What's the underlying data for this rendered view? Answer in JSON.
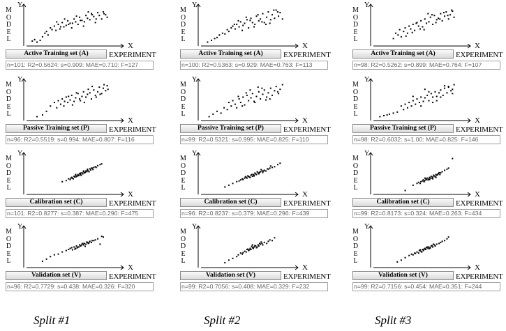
{
  "labels": {
    "y_axis": "Y",
    "x_axis": "X",
    "experiment": "EXPERIMENT",
    "model": "MODEL"
  },
  "splits": [
    "Split #1",
    "Split #2",
    "Split #3"
  ],
  "set_names": [
    "Active Training set (A)",
    "Passive Training set (P)",
    "Calibration set (C)",
    "Validation set (V)"
  ],
  "chart_data": [
    {
      "type": "scatter",
      "split": "Split #1",
      "set": "Active Training set (A)",
      "stats": "n=101: R2=0.5624: s=0.909: MAE=0.710: F=127",
      "xlabel": "X",
      "ylabel": "Y",
      "x": [
        0.02,
        0.05,
        0.08,
        0.12,
        0.15,
        0.18,
        0.2,
        0.22,
        0.25,
        0.27,
        0.3,
        0.32,
        0.35,
        0.37,
        0.4,
        0.42,
        0.45,
        0.47,
        0.5,
        0.52,
        0.55,
        0.57,
        0.6,
        0.62,
        0.65,
        0.67,
        0.7,
        0.72,
        0.75,
        0.77,
        0.8,
        0.82,
        0.85,
        0.87,
        0.9,
        0.92,
        0.95,
        0.97,
        0.33,
        0.43,
        0.53,
        0.63,
        0.73,
        0.83,
        0.93,
        0.38,
        0.48,
        0.58,
        0.68,
        0.78
      ],
      "y": [
        0.08,
        0.12,
        0.05,
        0.1,
        0.2,
        0.3,
        0.35,
        0.25,
        0.45,
        0.4,
        0.5,
        0.38,
        0.55,
        0.42,
        0.6,
        0.48,
        0.52,
        0.65,
        0.58,
        0.45,
        0.7,
        0.62,
        0.55,
        0.75,
        0.66,
        0.5,
        0.8,
        0.72,
        0.68,
        0.85,
        0.77,
        0.6,
        0.88,
        0.8,
        0.7,
        0.9,
        0.82,
        0.75,
        0.62,
        0.7,
        0.58,
        0.66,
        0.9,
        0.7,
        0.85,
        0.48,
        0.55,
        0.78,
        0.62,
        0.82
      ]
    },
    {
      "type": "scatter",
      "split": "Split #2",
      "set": "Active Training set (A)",
      "stats": "n=100: R2=0.5363: s=0.929: MAE=0.763: F=113",
      "xlabel": "X",
      "ylabel": "Y",
      "x": [
        0.03,
        0.08,
        0.12,
        0.15,
        0.18,
        0.22,
        0.25,
        0.28,
        0.3,
        0.33,
        0.35,
        0.38,
        0.4,
        0.43,
        0.45,
        0.48,
        0.5,
        0.53,
        0.55,
        0.58,
        0.6,
        0.63,
        0.65,
        0.68,
        0.7,
        0.73,
        0.75,
        0.78,
        0.8,
        0.83,
        0.85,
        0.88,
        0.9,
        0.93,
        0.95,
        0.98,
        0.42,
        0.52,
        0.62,
        0.72,
        0.82,
        0.92,
        0.47,
        0.57,
        0.67,
        0.77,
        0.87,
        0.37
      ],
      "y": [
        0.05,
        0.1,
        0.15,
        0.18,
        0.25,
        0.3,
        0.28,
        0.4,
        0.35,
        0.45,
        0.5,
        0.42,
        0.55,
        0.48,
        0.62,
        0.52,
        0.58,
        0.68,
        0.45,
        0.72,
        0.6,
        0.55,
        0.78,
        0.65,
        0.7,
        0.85,
        0.6,
        0.75,
        0.9,
        0.68,
        0.82,
        0.72,
        0.95,
        0.78,
        0.88,
        0.7,
        0.65,
        0.75,
        0.48,
        0.62,
        0.58,
        0.9,
        0.38,
        0.66,
        0.82,
        0.55,
        0.95,
        0.55
      ]
    },
    {
      "type": "scatter",
      "split": "Split #3",
      "set": "Active Training set (A)",
      "stats": "n=98: R2=0.5262: s=0.899: MAE=0.764: F=107",
      "xlabel": "X",
      "ylabel": "Y",
      "x": [
        0.2,
        0.23,
        0.26,
        0.28,
        0.3,
        0.33,
        0.35,
        0.38,
        0.4,
        0.42,
        0.45,
        0.47,
        0.5,
        0.52,
        0.55,
        0.57,
        0.6,
        0.62,
        0.65,
        0.67,
        0.7,
        0.72,
        0.75,
        0.77,
        0.8,
        0.82,
        0.85,
        0.87,
        0.9,
        0.92,
        0.95,
        0.97,
        0.44,
        0.54,
        0.64,
        0.74,
        0.84,
        0.94,
        0.49,
        0.59,
        0.69,
        0.79,
        0.89,
        0.36
      ],
      "y": [
        0.15,
        0.3,
        0.25,
        0.4,
        0.2,
        0.35,
        0.45,
        0.3,
        0.5,
        0.42,
        0.55,
        0.38,
        0.6,
        0.5,
        0.65,
        0.48,
        0.7,
        0.58,
        0.62,
        0.75,
        0.55,
        0.8,
        0.68,
        0.72,
        0.85,
        0.65,
        0.78,
        0.9,
        0.7,
        0.82,
        0.92,
        0.75,
        0.32,
        0.42,
        0.85,
        0.6,
        0.88,
        0.95,
        0.58,
        0.4,
        0.82,
        0.7,
        0.8,
        0.22
      ]
    },
    {
      "type": "scatter",
      "split": "Split #1",
      "set": "Passive Training set (P)",
      "stats": "n=96: R2=0.5519: s=0.994: MAE=0.807: F=116",
      "xlabel": "X",
      "ylabel": "Y",
      "x": [
        0.08,
        0.15,
        0.2,
        0.25,
        0.3,
        0.33,
        0.35,
        0.38,
        0.4,
        0.42,
        0.45,
        0.47,
        0.5,
        0.52,
        0.55,
        0.57,
        0.6,
        0.62,
        0.65,
        0.67,
        0.7,
        0.72,
        0.75,
        0.77,
        0.8,
        0.82,
        0.85,
        0.87,
        0.9,
        0.92,
        0.95,
        0.97,
        0.98,
        0.43,
        0.53,
        0.63,
        0.73,
        0.83,
        0.48,
        0.58,
        0.68,
        0.78,
        0.88,
        0.93
      ],
      "y": [
        0.05,
        0.1,
        0.2,
        0.35,
        0.45,
        0.3,
        0.5,
        0.4,
        0.55,
        0.35,
        0.6,
        0.45,
        0.52,
        0.65,
        0.48,
        0.58,
        0.7,
        0.55,
        0.62,
        0.75,
        0.6,
        0.68,
        0.72,
        0.55,
        0.8,
        0.65,
        0.75,
        0.88,
        0.7,
        0.85,
        0.78,
        0.92,
        0.82,
        0.48,
        0.38,
        0.5,
        0.82,
        0.6,
        0.62,
        0.72,
        0.45,
        0.9,
        0.68,
        0.95
      ]
    },
    {
      "type": "scatter",
      "split": "Split #2",
      "set": "Passive Training set (P)",
      "stats": "n=99: R2=0.5321: s=0.995: MAE=0.825: F=110",
      "xlabel": "X",
      "ylabel": "Y",
      "x": [
        0.05,
        0.1,
        0.15,
        0.2,
        0.24,
        0.28,
        0.3,
        0.33,
        0.35,
        0.38,
        0.4,
        0.43,
        0.45,
        0.48,
        0.5,
        0.53,
        0.55,
        0.58,
        0.6,
        0.63,
        0.65,
        0.68,
        0.7,
        0.73,
        0.75,
        0.78,
        0.8,
        0.83,
        0.85,
        0.88,
        0.9,
        0.93,
        0.95,
        0.98,
        0.42,
        0.52,
        0.62,
        0.72,
        0.82,
        0.92,
        0.47,
        0.57,
        0.67,
        0.77
      ],
      "y": [
        0.05,
        0.12,
        0.2,
        0.15,
        0.3,
        0.25,
        0.45,
        0.35,
        0.5,
        0.4,
        0.3,
        0.55,
        0.45,
        0.6,
        0.38,
        0.65,
        0.5,
        0.58,
        0.7,
        0.45,
        0.62,
        0.75,
        0.55,
        0.68,
        0.8,
        0.6,
        0.72,
        0.85,
        0.65,
        0.78,
        0.9,
        0.7,
        0.82,
        0.95,
        0.62,
        0.72,
        0.48,
        0.85,
        0.55,
        0.75,
        0.35,
        0.8,
        0.88,
        0.52
      ]
    },
    {
      "type": "scatter",
      "split": "Split #3",
      "set": "Passive Training set (P)",
      "stats": "n=98: R2=0.6032: s=1.00: MAE=0.825: F=146",
      "xlabel": "X",
      "ylabel": "Y",
      "x": [
        0.03,
        0.08,
        0.12,
        0.15,
        0.2,
        0.25,
        0.3,
        0.33,
        0.35,
        0.38,
        0.4,
        0.43,
        0.45,
        0.48,
        0.5,
        0.53,
        0.55,
        0.58,
        0.6,
        0.63,
        0.65,
        0.68,
        0.7,
        0.73,
        0.75,
        0.78,
        0.8,
        0.83,
        0.85,
        0.88,
        0.9,
        0.93,
        0.95,
        0.97,
        0.45,
        0.55,
        0.65,
        0.75,
        0.85,
        0.95,
        0.6,
        0.7,
        0.8,
        0.9
      ],
      "y": [
        0.05,
        0.08,
        0.1,
        0.12,
        0.15,
        0.18,
        0.35,
        0.25,
        0.4,
        0.3,
        0.45,
        0.35,
        0.5,
        0.4,
        0.55,
        0.45,
        0.6,
        0.48,
        0.58,
        0.65,
        0.5,
        0.7,
        0.6,
        0.75,
        0.62,
        0.72,
        0.8,
        0.65,
        0.85,
        0.72,
        0.9,
        0.78,
        0.82,
        0.95,
        0.62,
        0.35,
        0.75,
        0.5,
        0.92,
        0.7,
        0.82,
        0.45,
        0.6,
        0.88
      ]
    },
    {
      "type": "scatter",
      "split": "Split #1",
      "set": "Calibration set (C)",
      "stats": "n=101: R2=0.8277: s=0.387: MAE=0.290: F=475",
      "xlabel": "X",
      "ylabel": "Y",
      "x": [
        0.4,
        0.45,
        0.48,
        0.5,
        0.52,
        0.53,
        0.55,
        0.56,
        0.57,
        0.58,
        0.6,
        0.61,
        0.62,
        0.63,
        0.65,
        0.66,
        0.67,
        0.68,
        0.7,
        0.71,
        0.72,
        0.73,
        0.75,
        0.76,
        0.78,
        0.8,
        0.82,
        0.85,
        0.88,
        0.9,
        0.54,
        0.59,
        0.64,
        0.69,
        0.74,
        0.79,
        0.51,
        0.57,
        0.63,
        0.67,
        0.72,
        0.77,
        0.83,
        0.6,
        0.66
      ],
      "y": [
        0.3,
        0.33,
        0.38,
        0.36,
        0.42,
        0.4,
        0.45,
        0.43,
        0.48,
        0.44,
        0.5,
        0.47,
        0.52,
        0.5,
        0.55,
        0.52,
        0.58,
        0.55,
        0.6,
        0.58,
        0.62,
        0.6,
        0.66,
        0.63,
        0.68,
        0.7,
        0.72,
        0.75,
        0.78,
        0.8,
        0.38,
        0.46,
        0.48,
        0.56,
        0.58,
        0.64,
        0.4,
        0.5,
        0.54,
        0.6,
        0.65,
        0.68,
        0.7,
        0.48,
        0.52
      ]
    },
    {
      "type": "scatter",
      "split": "Split #2",
      "set": "Calibration set (C)",
      "stats": "n=96: R2=0.8237: s=0.379: MAE=0.296: F=439",
      "xlabel": "X",
      "ylabel": "Y",
      "x": [
        0.25,
        0.3,
        0.35,
        0.4,
        0.43,
        0.45,
        0.47,
        0.5,
        0.52,
        0.53,
        0.55,
        0.56,
        0.58,
        0.6,
        0.61,
        0.62,
        0.64,
        0.65,
        0.67,
        0.68,
        0.7,
        0.72,
        0.73,
        0.75,
        0.77,
        0.8,
        0.82,
        0.85,
        0.88,
        0.92,
        0.95,
        0.48,
        0.54,
        0.59,
        0.63,
        0.69,
        0.74,
        0.79,
        0.57,
        0.66,
        0.71,
        0.83,
        0.62,
        0.51
      ],
      "y": [
        0.15,
        0.2,
        0.25,
        0.3,
        0.32,
        0.35,
        0.38,
        0.4,
        0.42,
        0.4,
        0.45,
        0.43,
        0.48,
        0.45,
        0.5,
        0.48,
        0.52,
        0.5,
        0.55,
        0.52,
        0.58,
        0.6,
        0.56,
        0.62,
        0.6,
        0.65,
        0.68,
        0.7,
        0.72,
        0.78,
        0.82,
        0.36,
        0.46,
        0.5,
        0.54,
        0.56,
        0.6,
        0.66,
        0.42,
        0.58,
        0.64,
        0.74,
        0.46,
        0.44
      ]
    },
    {
      "type": "scatter",
      "split": "Split #3",
      "set": "Calibration set (C)",
      "stats": "n=99: R2=0.8173: s=0.324: MAE=0.263: F=434",
      "xlabel": "X",
      "ylabel": "Y",
      "x": [
        0.35,
        0.45,
        0.5,
        0.52,
        0.55,
        0.57,
        0.58,
        0.6,
        0.61,
        0.62,
        0.63,
        0.65,
        0.66,
        0.67,
        0.68,
        0.7,
        0.71,
        0.72,
        0.74,
        0.75,
        0.77,
        0.78,
        0.8,
        0.82,
        0.85,
        0.88,
        0.9,
        0.95,
        0.59,
        0.64,
        0.69,
        0.73,
        0.76,
        0.79,
        0.54,
        0.6,
        0.66,
        0.7,
        0.74
      ],
      "y": [
        0.05,
        0.2,
        0.25,
        0.28,
        0.3,
        0.32,
        0.35,
        0.33,
        0.38,
        0.36,
        0.4,
        0.38,
        0.42,
        0.4,
        0.45,
        0.43,
        0.48,
        0.46,
        0.5,
        0.48,
        0.52,
        0.55,
        0.55,
        0.58,
        0.62,
        0.65,
        0.68,
        0.95,
        0.3,
        0.35,
        0.4,
        0.44,
        0.5,
        0.5,
        0.25,
        0.4,
        0.36,
        0.38,
        0.42
      ]
    },
    {
      "type": "scatter",
      "split": "Split #1",
      "set": "Validation set (V)",
      "stats": "n=96: R2=0.7729: s=0.438: MAE=0.326: F=320",
      "xlabel": "X",
      "ylabel": "Y",
      "x": [
        0.15,
        0.2,
        0.25,
        0.3,
        0.35,
        0.4,
        0.45,
        0.48,
        0.5,
        0.52,
        0.55,
        0.57,
        0.58,
        0.6,
        0.62,
        0.63,
        0.65,
        0.67,
        0.68,
        0.7,
        0.72,
        0.73,
        0.75,
        0.77,
        0.8,
        0.82,
        0.85,
        0.88,
        0.9,
        0.92,
        0.53,
        0.59,
        0.64,
        0.69,
        0.74,
        0.56,
        0.61,
        0.66,
        0.71,
        0.78
      ],
      "y": [
        0.12,
        0.18,
        0.25,
        0.3,
        0.32,
        0.38,
        0.42,
        0.45,
        0.48,
        0.5,
        0.52,
        0.48,
        0.55,
        0.52,
        0.58,
        0.55,
        0.6,
        0.58,
        0.62,
        0.6,
        0.65,
        0.62,
        0.68,
        0.65,
        0.7,
        0.72,
        0.75,
        0.6,
        0.82,
        0.8,
        0.44,
        0.5,
        0.56,
        0.54,
        0.64,
        0.46,
        0.52,
        0.62,
        0.66,
        0.7
      ]
    },
    {
      "type": "scatter",
      "split": "Split #2",
      "set": "Validation set (V)",
      "stats": "n=99: R2=0.7056: s=0.408: MAE=0.329: F=232",
      "xlabel": "X",
      "ylabel": "Y",
      "x": [
        0.25,
        0.3,
        0.35,
        0.4,
        0.42,
        0.45,
        0.47,
        0.5,
        0.52,
        0.53,
        0.55,
        0.57,
        0.58,
        0.6,
        0.61,
        0.62,
        0.64,
        0.65,
        0.67,
        0.68,
        0.7,
        0.72,
        0.73,
        0.75,
        0.78,
        0.8,
        0.82,
        0.85,
        0.88,
        0.48,
        0.54,
        0.59,
        0.63,
        0.69,
        0.56,
        0.6,
        0.66,
        0.71
      ],
      "y": [
        0.08,
        0.15,
        0.2,
        0.25,
        0.3,
        0.35,
        0.32,
        0.4,
        0.38,
        0.45,
        0.42,
        0.48,
        0.45,
        0.5,
        0.48,
        0.52,
        0.55,
        0.5,
        0.58,
        0.55,
        0.6,
        0.62,
        0.58,
        0.65,
        0.62,
        0.68,
        0.72,
        0.7,
        0.78,
        0.36,
        0.46,
        0.54,
        0.56,
        0.62,
        0.44,
        0.58,
        0.52,
        0.66
      ]
    },
    {
      "type": "scatter",
      "split": "Split #3",
      "set": "Validation set (V)",
      "stats": "n=99: R2=0.7156: s=0.454: MAE=0.351: F=244",
      "xlabel": "X",
      "ylabel": "Y",
      "x": [
        0.25,
        0.3,
        0.35,
        0.4,
        0.43,
        0.45,
        0.47,
        0.5,
        0.52,
        0.53,
        0.55,
        0.57,
        0.58,
        0.6,
        0.61,
        0.62,
        0.64,
        0.65,
        0.67,
        0.68,
        0.7,
        0.72,
        0.73,
        0.75,
        0.78,
        0.8,
        0.82,
        0.85,
        0.88,
        0.9,
        0.48,
        0.54,
        0.59,
        0.63,
        0.69,
        0.56,
        0.66,
        0.71
      ],
      "y": [
        0.1,
        0.15,
        0.22,
        0.28,
        0.32,
        0.3,
        0.35,
        0.38,
        0.35,
        0.42,
        0.4,
        0.45,
        0.42,
        0.48,
        0.45,
        0.5,
        0.48,
        0.52,
        0.5,
        0.55,
        0.52,
        0.58,
        0.55,
        0.6,
        0.62,
        0.65,
        0.68,
        0.7,
        0.75,
        0.8,
        0.34,
        0.44,
        0.46,
        0.52,
        0.56,
        0.38,
        0.48,
        0.6
      ]
    }
  ]
}
